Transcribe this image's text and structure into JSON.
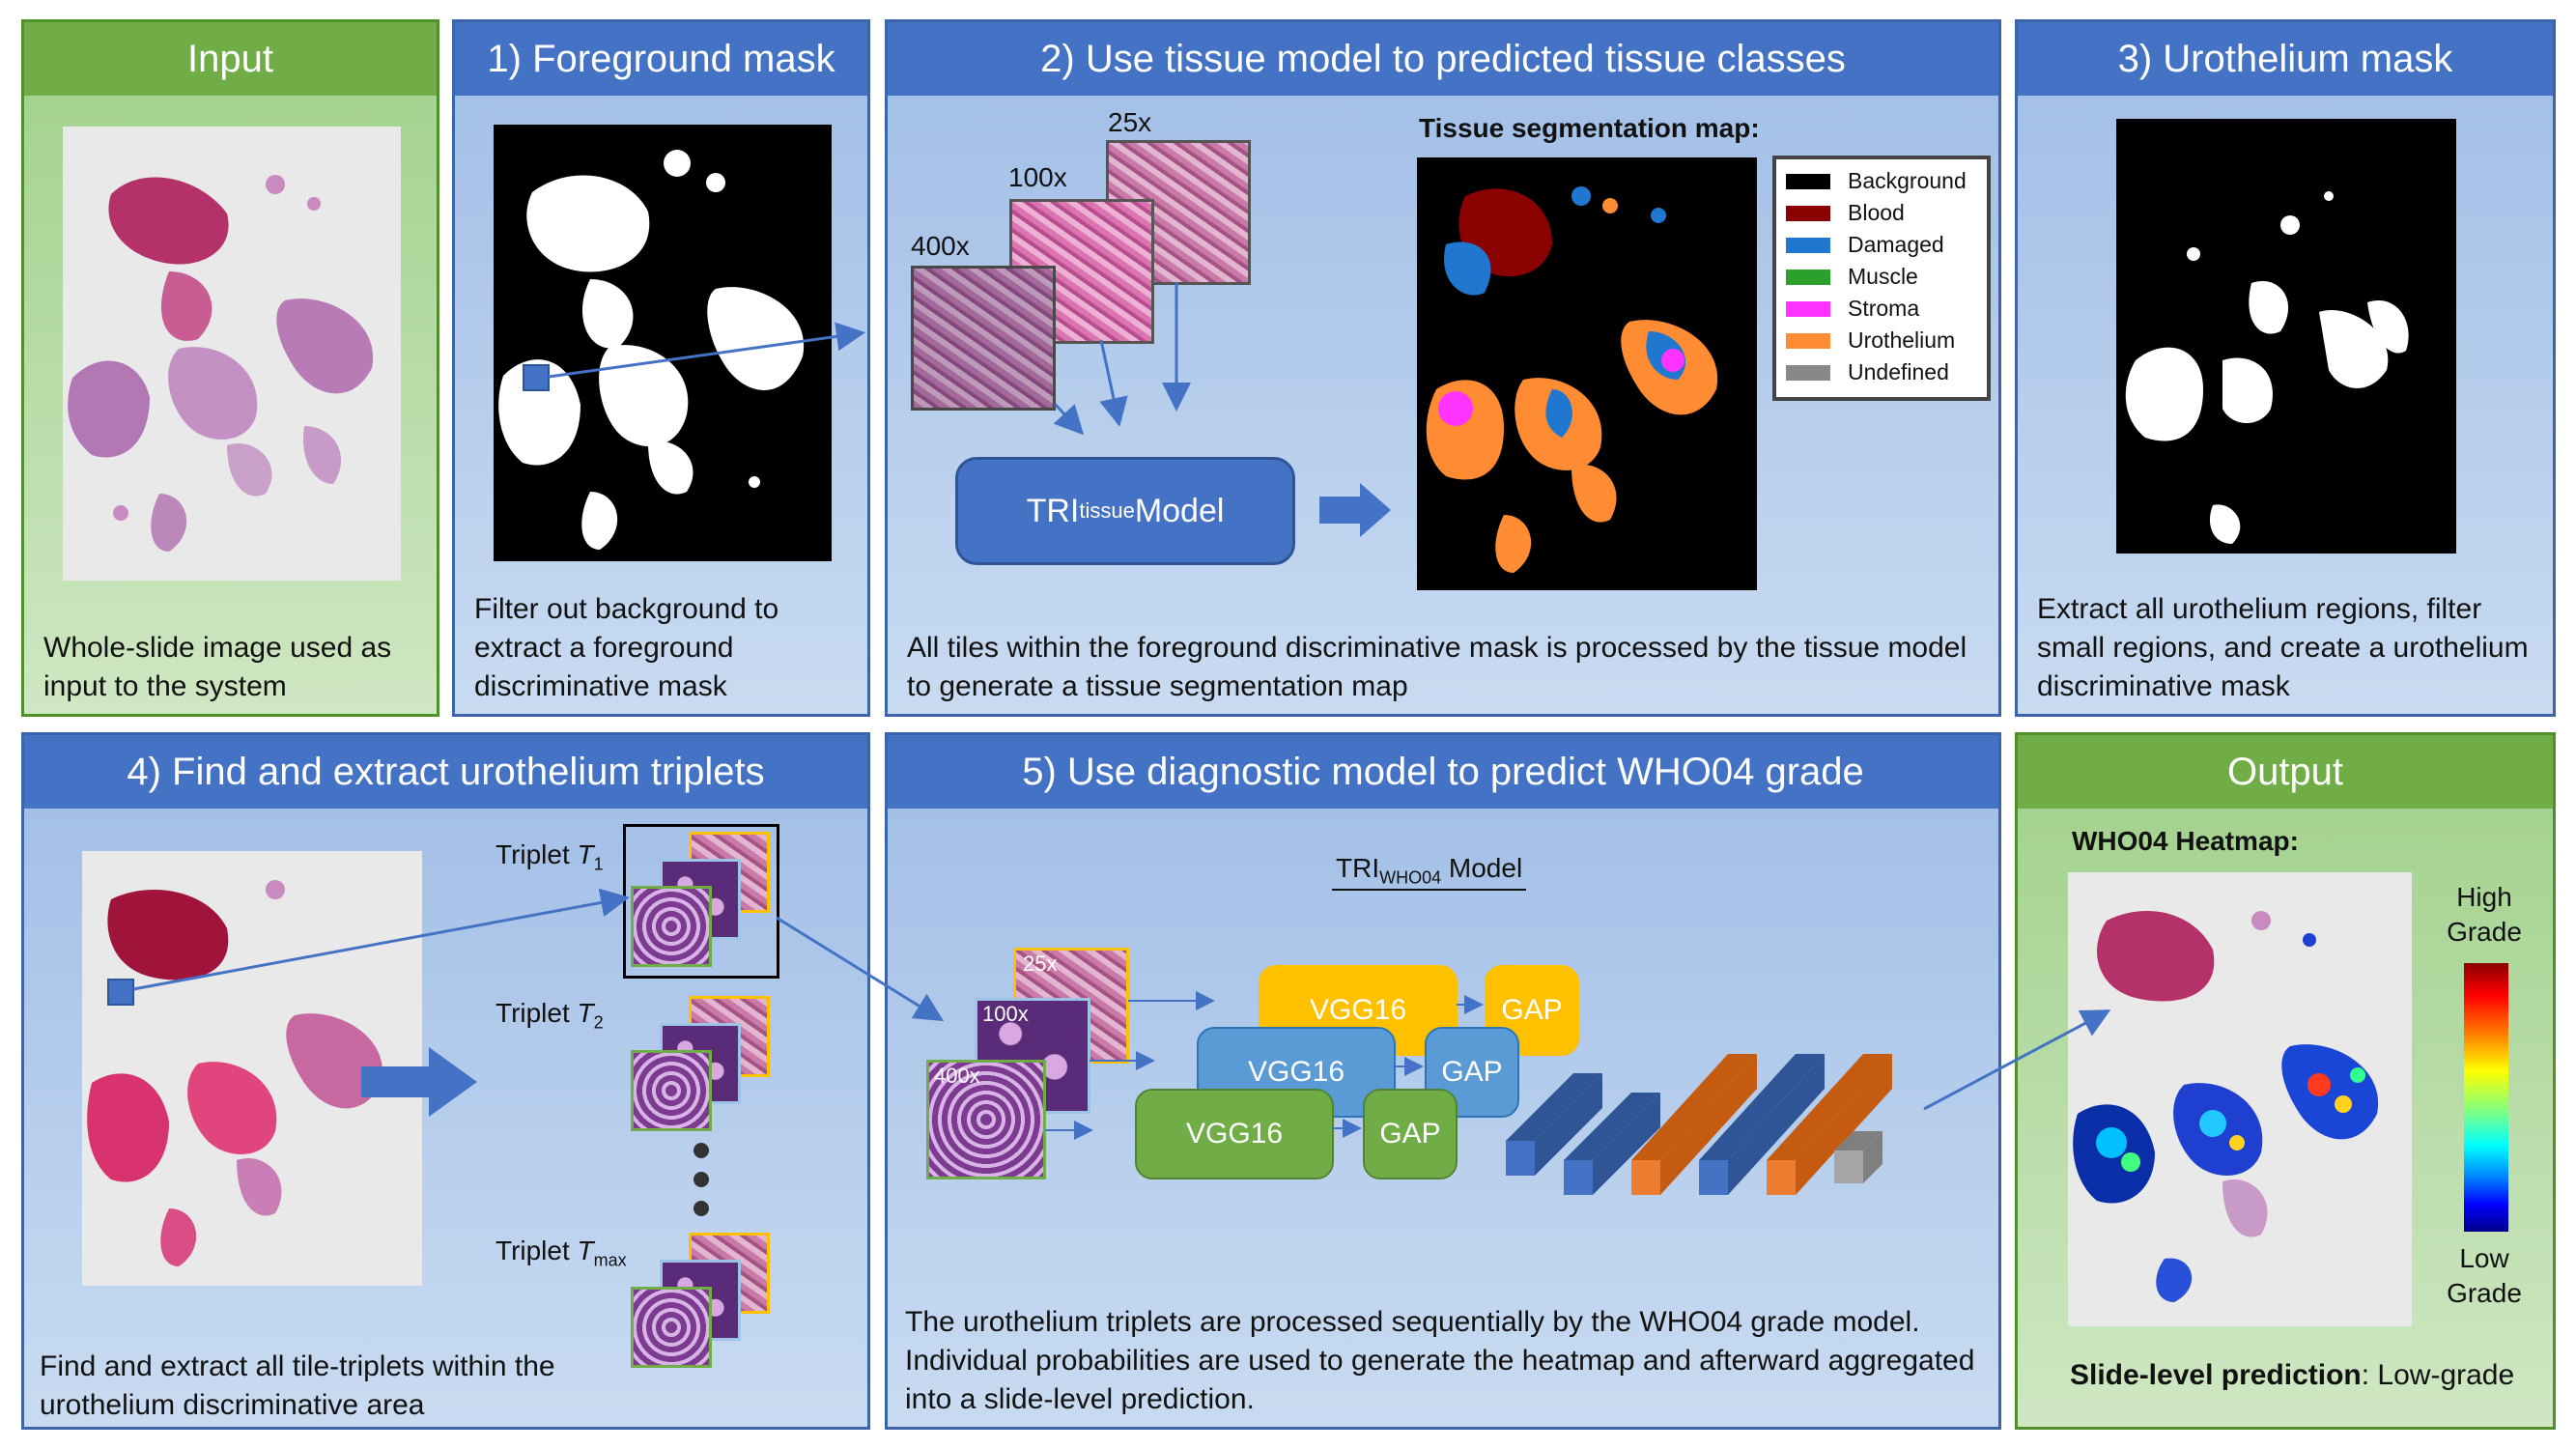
{
  "panels": {
    "input": {
      "title": "Input",
      "desc": "Whole-slide image used as input to the system"
    },
    "fg": {
      "title": "1) Foreground mask",
      "desc": "Filter out background to extract a foreground discriminative mask"
    },
    "tissue": {
      "title": "2) Use tissue model to predicted tissue classes",
      "desc": "All tiles within the foreground discriminative mask is processed by the tissue model to generate a tissue segmentation map",
      "mag_25": "25x",
      "mag_100": "100x",
      "mag_400": "400x",
      "model_main": "TRI",
      "model_sub": "tissue",
      "model_tail": " Model",
      "seg_title": "Tissue segmentation map:",
      "legend": [
        {
          "label": "Background",
          "color": "#000000"
        },
        {
          "label": "Blood",
          "color": "#8b0000"
        },
        {
          "label": "Damaged",
          "color": "#1f77d0"
        },
        {
          "label": "Muscle",
          "color": "#2ca02c"
        },
        {
          "label": "Stroma",
          "color": "#ff33ff"
        },
        {
          "label": "Urothelium",
          "color": "#ff8c33"
        },
        {
          "label": "Undefined",
          "color": "#888888"
        }
      ]
    },
    "uro": {
      "title": "3) Urothelium mask",
      "desc": "Extract all urothelium regions, filter small regions, and create a urothelium discriminative mask"
    },
    "triplets": {
      "title": "4) Find and extract urothelium triplets",
      "desc": "Find and extract all tile-triplets within the urothelium discriminative area",
      "t1": "Triplet ",
      "t1_sym": "T",
      "t1_sub": "1",
      "t2": "Triplet ",
      "t2_sym": "T",
      "t2_sub": "2",
      "tmax": "Triplet ",
      "tmax_sym": "T",
      "tmax_sub": "max"
    },
    "diag": {
      "title": "5) Use diagnostic model to predict WHO04 grade",
      "desc": "The urothelium triplets are processed sequentially by the WHO04 grade model. Individual probabilities are used to generate the heatmap and afterward aggregated into a slide-level prediction.",
      "model_main": "TRI",
      "model_sub": "WHO04",
      "model_tail": " Model",
      "mag_25": "25x",
      "mag_100": "100x",
      "mag_400": "400x",
      "vgg": "VGG16",
      "gap": "GAP"
    },
    "output": {
      "title": "Output",
      "heat_title": "WHO04 Heatmap:",
      "high": "High Grade",
      "low": "Low Grade",
      "pred_label": "Slide-level prediction",
      "pred_value": ": Low-grade"
    }
  },
  "colors": {
    "blue_header": "#4472c4",
    "green_header": "#70ad47",
    "vgg_yellow": "#ffc000",
    "vgg_blue": "#5b9bd5",
    "vgg_green": "#70ad47",
    "orange_layer": "#ed7d31"
  }
}
